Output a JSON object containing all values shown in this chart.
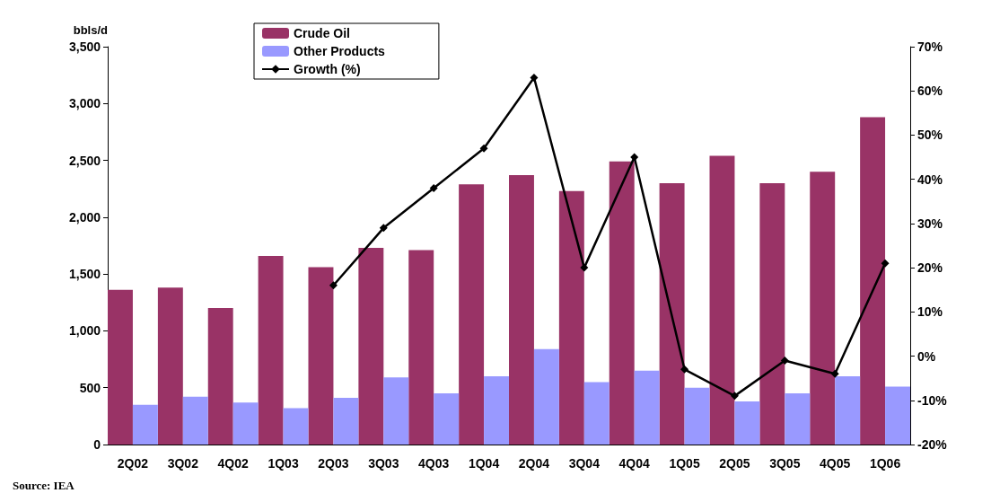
{
  "chart_data": {
    "type": "bar",
    "ylabel": "bbls/d",
    "categories": [
      "2Q02",
      "3Q02",
      "4Q02",
      "1Q03",
      "2Q03",
      "3Q03",
      "4Q03",
      "1Q04",
      "2Q04",
      "3Q04",
      "4Q04",
      "1Q05",
      "2Q05",
      "3Q05",
      "4Q05",
      "1Q06"
    ],
    "series": [
      {
        "name": "Crude Oil",
        "color": "#993366",
        "values": [
          1360,
          1380,
          1200,
          1660,
          1560,
          1730,
          1710,
          2290,
          2370,
          2230,
          2490,
          2300,
          2540,
          2300,
          2400,
          2880
        ]
      },
      {
        "name": "Other Products",
        "color": "#9999ff",
        "values": [
          350,
          420,
          370,
          320,
          410,
          590,
          450,
          600,
          840,
          550,
          650,
          500,
          380,
          450,
          600,
          510
        ]
      },
      {
        "name": "Growth (%)",
        "type": "line",
        "axis": "y2",
        "color": "#000000",
        "marker": "diamond",
        "line_style": "solid",
        "values": [
          null,
          null,
          null,
          null,
          16,
          29,
          38,
          47,
          63,
          20,
          45,
          -3,
          -9,
          -1,
          -4,
          21
        ]
      }
    ],
    "ylim": [
      0,
      3500
    ],
    "yticks": [
      {
        "value": 0,
        "label": "0"
      },
      {
        "value": 500,
        "label": "500"
      },
      {
        "value": 1000,
        "label": "1,000"
      },
      {
        "value": 1500,
        "label": "1,500"
      },
      {
        "value": 2000,
        "label": "2,000"
      },
      {
        "value": 2500,
        "label": "2,500"
      },
      {
        "value": 3000,
        "label": "3,000"
      },
      {
        "value": 3500,
        "label": "3,500"
      }
    ],
    "y2lim": [
      -20,
      70
    ],
    "y2ticks": [
      {
        "value": -20,
        "label": "-20%"
      },
      {
        "value": -10,
        "label": "-10%"
      },
      {
        "value": 0,
        "label": "0%"
      },
      {
        "value": 10,
        "label": "10%"
      },
      {
        "value": 20,
        "label": "20%"
      },
      {
        "value": 30,
        "label": "30%"
      },
      {
        "value": 40,
        "label": "40%"
      },
      {
        "value": 50,
        "label": "50%"
      },
      {
        "value": 60,
        "label": "60%"
      },
      {
        "value": 70,
        "label": "70%"
      }
    ],
    "grid": false,
    "legend": "top left",
    "annotations": [
      "Source: IEA"
    ]
  }
}
